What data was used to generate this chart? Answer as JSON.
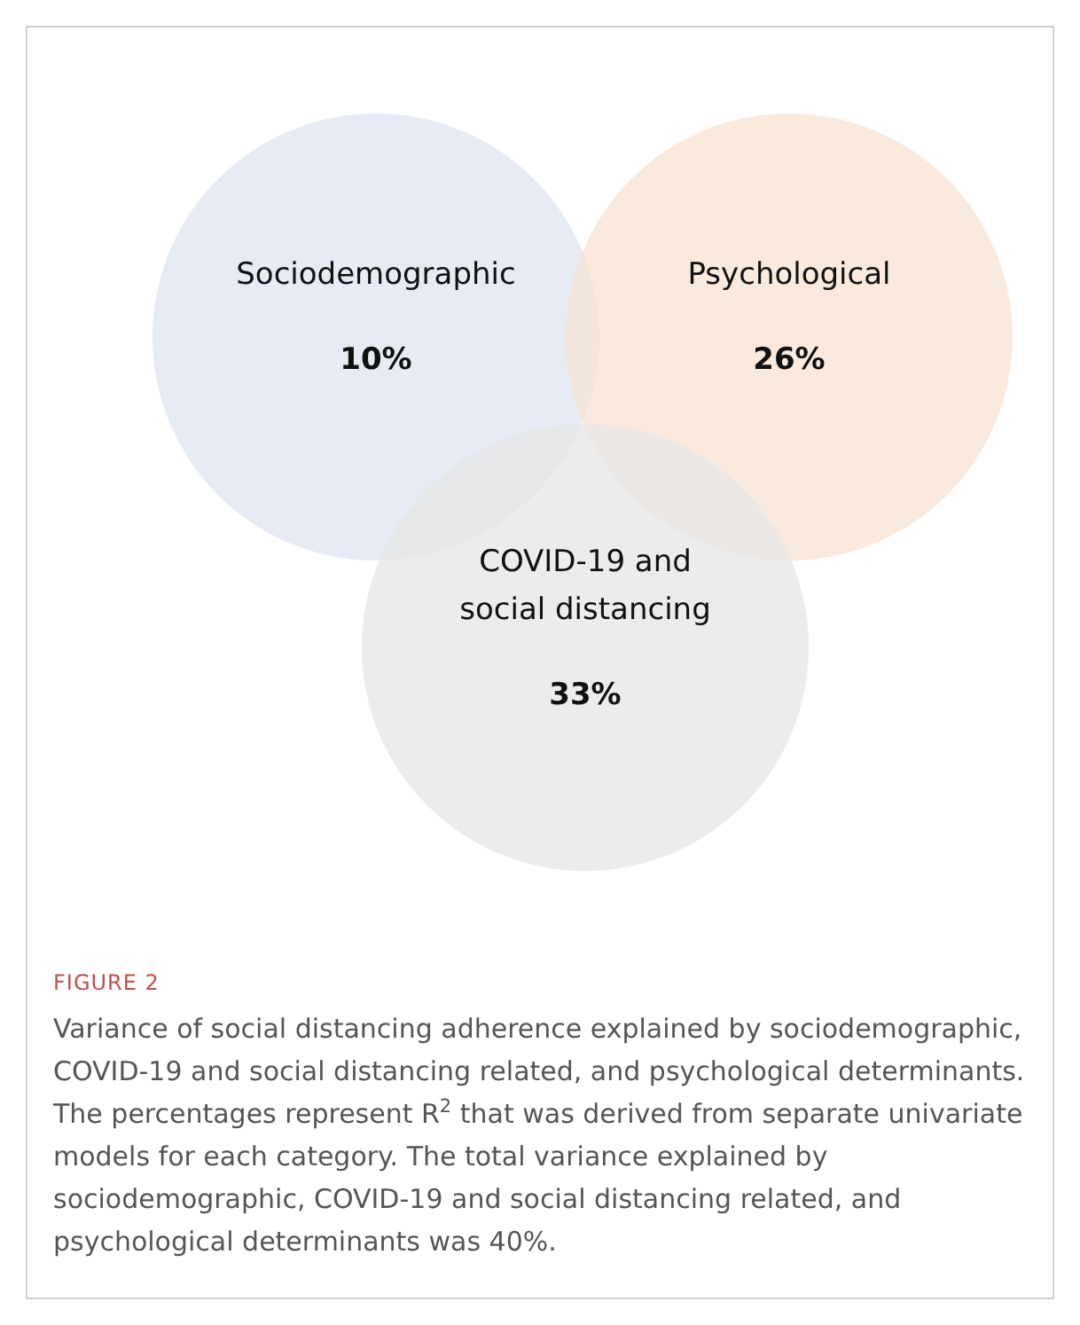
{
  "chart_data": {
    "type": "other",
    "title": "FIGURE 2",
    "categories": [
      "Sociodemographic",
      "Psychological",
      "COVID-19 and social distancing"
    ],
    "values": [
      10,
      26,
      33
    ],
    "value_labels": [
      "10%",
      "26%",
      "33%"
    ],
    "colors": [
      "#dde4f0",
      "#f8e3d2",
      "#e6e6e6"
    ],
    "annotations": [
      "Variance of social distancing adherence explained by sociodemographic, COVID-19 and social distancing related, and psychological determinants. The percentages represent R$^{2}$ that was derived from separate univariate models for each category. The total variance explained by sociodemographic, COVID-19 and social distancing related, and psychological determinants was 40%."
    ]
  }
}
